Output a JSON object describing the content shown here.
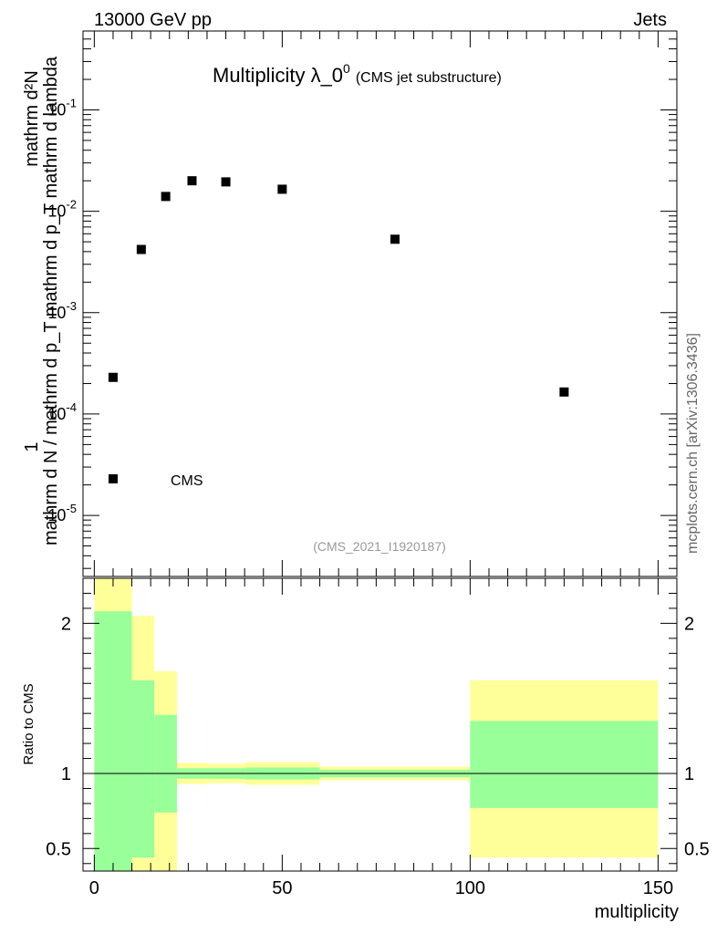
{
  "header": {
    "left": "13000 GeV pp",
    "right": "Jets"
  },
  "plot": {
    "title_main": "Multiplicity λ_0",
    "title_sup": "0",
    "title_note": "(CMS jet substructure)",
    "analysis_id": "(CMS_2021_I1920187)",
    "watermark": "mcplots.cern.ch [arXiv:1306.3436]",
    "legend_label": "CMS"
  },
  "ylabel_numerator": "mathrm d²N",
  "ylabel_denominator": "mathrm d N / mathrm d p_T mathrm d p_T mathrm d lambda",
  "ylabel_one": "1",
  "colors": {
    "band_inner": "#99ff99",
    "band_outer": "#ffff99",
    "marker": "#000000"
  },
  "chart_data": [
    {
      "type": "scatter",
      "title": "Multiplicity λ_0^0",
      "xlabel": "multiplicity",
      "ylabel": "1 / (mathrm d N / mathrm d p_T mathrm d p_T mathrm d lambda) · mathrm d²N",
      "yscale": "log",
      "xlim": [
        -3,
        155
      ],
      "ylim": [
        2.5e-06,
        0.6
      ],
      "series": [
        {
          "name": "CMS",
          "x": [
            5,
            12.5,
            19,
            26,
            35,
            50,
            80,
            125
          ],
          "y": [
            0.00023,
            0.0042,
            0.014,
            0.02,
            0.0195,
            0.0165,
            0.0053,
            0.000165
          ]
        }
      ],
      "ytick_labels": [
        "10^-5",
        "10^-4",
        "10^-3",
        "10^-2",
        "10^-1"
      ],
      "ytick_values": [
        1e-05,
        0.0001,
        0.001,
        0.01,
        0.1
      ],
      "legend": "bottom-left"
    },
    {
      "type": "area",
      "xlabel": "multiplicity",
      "ylabel": "Ratio to CMS",
      "xlim": [
        -3,
        155
      ],
      "ylim": [
        0.35,
        2.3
      ],
      "reference_line": 1,
      "bins": [
        {
          "x0": 0,
          "x1": 10,
          "inner": [
            0.35,
            2.08
          ],
          "outer": [
            0.35,
            2.3
          ]
        },
        {
          "x0": 10,
          "x1": 16,
          "inner": [
            0.44,
            1.62
          ],
          "outer": [
            0.35,
            2.05
          ]
        },
        {
          "x0": 16,
          "x1": 22,
          "inner": [
            0.74,
            1.39
          ],
          "outer": [
            0.35,
            1.68
          ]
        },
        {
          "x0": 22,
          "x1": 30,
          "inner": [
            0.965,
            1.035
          ],
          "outer": [
            0.93,
            1.07
          ]
        },
        {
          "x0": 30,
          "x1": 40,
          "inner": [
            0.965,
            1.035
          ],
          "outer": [
            0.935,
            1.065
          ]
        },
        {
          "x0": 40,
          "x1": 60,
          "inner": [
            0.96,
            1.04
          ],
          "outer": [
            0.925,
            1.075
          ]
        },
        {
          "x0": 60,
          "x1": 100,
          "inner": [
            0.975,
            1.025
          ],
          "outer": [
            0.955,
            1.045
          ]
        },
        {
          "x0": 100,
          "x1": 150,
          "inner": [
            0.77,
            1.35
          ],
          "outer": [
            0.44,
            1.62
          ]
        }
      ],
      "xtick_labels": [
        "0",
        "50",
        "100",
        "150"
      ],
      "xtick_values": [
        0,
        50,
        100,
        150
      ],
      "ytick_labels": [
        "0.5",
        "1",
        "2"
      ],
      "ytick_values": [
        0.5,
        1,
        2
      ]
    }
  ]
}
